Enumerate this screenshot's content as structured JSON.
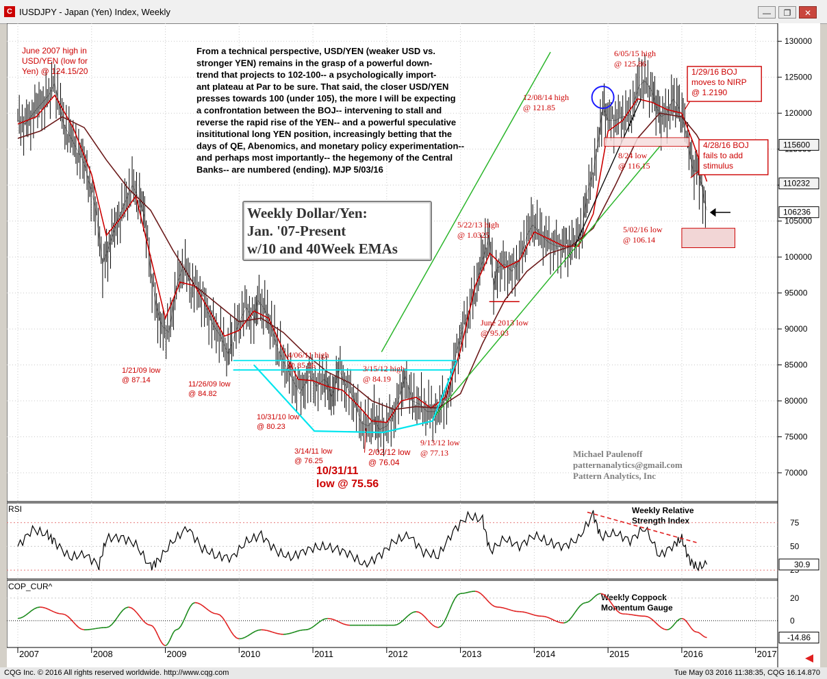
{
  "window": {
    "title": "IUSDJPY - Japan (Yen) Index, Weekly",
    "app_icon": "cqg-app-icon",
    "minimize_label": "—",
    "restore_label": "❐",
    "close_label": "✕"
  },
  "footer": {
    "copyright": "CQG Inc. © 2016 All rights reserved worldwide. http://www.cqg.com",
    "timestamp": "Tue May 03 2016 11:38:35, CQG 16.14.870"
  },
  "chart_data": {
    "type": "line",
    "title": "Weekly Dollar/Yen:",
    "title_lines": [
      "Weekly Dollar/Yen:",
      "Jan. '07-Present",
      "w/10 and 40Week EMAs"
    ],
    "x_axis": {
      "labels": [
        "2007",
        "2008",
        "2009",
        "2010",
        "2011",
        "2012",
        "2013",
        "2014",
        "2015",
        "2016",
        "2017"
      ],
      "range": [
        2007.0,
        2017.3
      ]
    },
    "y_axis": {
      "ticks": [
        130000,
        125000,
        120000,
        115000,
        110000,
        105000,
        100000,
        95000,
        90000,
        85000,
        80000,
        75000,
        70000
      ],
      "range": [
        66000,
        132500
      ],
      "price_boxes": [
        "115600",
        "110232",
        "106236"
      ]
    },
    "series": [
      {
        "name": "USDJPY",
        "color": "#000000",
        "x": [
          2007.0,
          2007.1,
          2007.25,
          2007.42,
          2007.5,
          2007.62,
          2007.75,
          2007.9,
          2008.05,
          2008.15,
          2008.22,
          2008.35,
          2008.45,
          2008.55,
          2008.65,
          2008.72,
          2008.8,
          2008.88,
          2008.95,
          2009.05,
          2009.15,
          2009.25,
          2009.35,
          2009.45,
          2009.55,
          2009.65,
          2009.75,
          2009.85,
          2009.9,
          2010.0,
          2010.1,
          2010.2,
          2010.25,
          2010.33,
          2010.42,
          2010.5,
          2010.6,
          2010.7,
          2010.82,
          2010.95,
          2011.05,
          2011.15,
          2011.2,
          2011.25,
          2011.3,
          2011.35,
          2011.45,
          2011.55,
          2011.65,
          2011.75,
          2011.83,
          2011.9,
          2012.0,
          2012.1,
          2012.2,
          2012.25,
          2012.35,
          2012.45,
          2012.55,
          2012.7,
          2012.85,
          2012.95,
          2013.05,
          2013.15,
          2013.3,
          2013.39,
          2013.45,
          2013.5,
          2013.6,
          2013.7,
          2013.8,
          2013.9,
          2013.98,
          2014.1,
          2014.2,
          2014.3,
          2014.4,
          2014.55,
          2014.65,
          2014.72,
          2014.8,
          2014.88,
          2014.93,
          2015.0,
          2015.1,
          2015.2,
          2015.3,
          2015.42,
          2015.5,
          2015.6,
          2015.65,
          2015.72,
          2015.8,
          2015.88,
          2015.95,
          2016.02,
          2016.08,
          2016.15,
          2016.22,
          2016.27,
          2016.3,
          2016.34
        ],
        "y": [
          119000,
          118500,
          120500,
          122500,
          124150,
          118500,
          116000,
          113000,
          107000,
          99000,
          101000,
          105000,
          107500,
          110000,
          108000,
          105500,
          98000,
          93000,
          90500,
          89500,
          96000,
          99000,
          96000,
          95500,
          93000,
          90500,
          89000,
          86500,
          88000,
          91000,
          93000,
          91000,
          94000,
          93000,
          91000,
          88000,
          85500,
          83500,
          81000,
          83500,
          82000,
          83000,
          82500,
          80500,
          82000,
          84500,
          82000,
          80500,
          77000,
          76500,
          77500,
          76000,
          76500,
          78000,
          81500,
          83500,
          80000,
          79500,
          78500,
          78500,
          81500,
          87000,
          90500,
          93500,
          99500,
          103000,
          96000,
          98500,
          99000,
          98000,
          99500,
          103000,
          104500,
          103000,
          102000,
          101500,
          101500,
          101800,
          104000,
          109000,
          112000,
          117000,
          121000,
          119000,
          119000,
          119500,
          119800,
          123800,
          124500,
          123000,
          121000,
          119500,
          120000,
          122000,
          121000,
          119000,
          116000,
          112000,
          112000,
          110000,
          108000,
          106500
        ],
        "cycle_note": "weekly bars"
      },
      {
        "name": "10 Week EMA",
        "color": "#cc0000",
        "x": [
          2007.0,
          2007.25,
          2007.5,
          2007.75,
          2008.0,
          2008.2,
          2008.4,
          2008.6,
          2008.8,
          2009.0,
          2009.2,
          2009.4,
          2009.6,
          2009.8,
          2010.0,
          2010.2,
          2010.4,
          2010.6,
          2010.8,
          2011.0,
          2011.2,
          2011.4,
          2011.6,
          2011.8,
          2012.0,
          2012.2,
          2012.4,
          2012.6,
          2012.8,
          2013.0,
          2013.2,
          2013.4,
          2013.6,
          2013.8,
          2014.0,
          2014.2,
          2014.4,
          2014.6,
          2014.8,
          2015.0,
          2015.2,
          2015.4,
          2015.6,
          2015.8,
          2016.0,
          2016.15,
          2016.34
        ],
        "y": [
          118500,
          119500,
          122500,
          118000,
          111500,
          103000,
          105500,
          108500,
          100000,
          91500,
          96500,
          96000,
          92500,
          89000,
          89800,
          92500,
          91500,
          87000,
          83000,
          82800,
          82000,
          81500,
          79500,
          77200,
          77000,
          80000,
          80500,
          79000,
          80500,
          87000,
          96000,
          100500,
          98500,
          99500,
          103500,
          102500,
          101500,
          101500,
          106000,
          117500,
          119000,
          122000,
          121500,
          120500,
          120000,
          116000,
          110500
        ]
      },
      {
        "name": "40 Week EMA",
        "color": "#6b1a1a",
        "x": [
          2007.0,
          2007.3,
          2007.6,
          2007.9,
          2008.2,
          2008.5,
          2008.8,
          2009.1,
          2009.4,
          2009.7,
          2010.0,
          2010.3,
          2010.6,
          2010.9,
          2011.2,
          2011.5,
          2011.8,
          2012.1,
          2012.4,
          2012.7,
          2013.0,
          2013.3,
          2013.6,
          2013.9,
          2014.2,
          2014.5,
          2014.8,
          2015.1,
          2015.4,
          2015.7,
          2016.0,
          2016.2,
          2016.34
        ],
        "y": [
          116500,
          117500,
          119500,
          118000,
          113500,
          109500,
          106500,
          101000,
          96000,
          93500,
          91000,
          91500,
          89500,
          86500,
          84000,
          82500,
          80000,
          78800,
          79200,
          79000,
          81000,
          88000,
          94000,
          98000,
          100500,
          101500,
          104000,
          110000,
          116500,
          120000,
          119500,
          117000,
          114500
        ]
      }
    ],
    "annotations": [
      {
        "lines": [
          "June 2007 high in",
          "USD/YEN (low for",
          "Yen) @ 124.15/20"
        ],
        "color": "#cc0000"
      },
      {
        "lines": [
          "1/21/09  low",
          "@ 87.14"
        ],
        "color": "#cc0000"
      },
      {
        "lines": [
          "11/26/09 low",
          "@ 84.82"
        ],
        "color": "#cc0000"
      },
      {
        "lines": [
          "10/31/10 low",
          "@ 80.23"
        ],
        "color": "#cc0000"
      },
      {
        "lines": [
          "4/06/11 high",
          "@ 85.56"
        ],
        "color": "#cc0000"
      },
      {
        "lines": [
          "3/14/11 low",
          "@ 76.25"
        ],
        "color": "#cc0000"
      },
      {
        "lines": [
          "2/02/12 low",
          "@ 76.04"
        ],
        "color": "#cc0000"
      },
      {
        "lines": [
          "10/31/11",
          "low @ 75.56"
        ],
        "color": "#cc0000"
      },
      {
        "lines": [
          "3/15/12 high",
          "@ 84.19"
        ],
        "color": "#cc0000"
      },
      {
        "lines": [
          "9/13/12 low",
          "@ 77.13"
        ],
        "color": "#cc0000"
      },
      {
        "lines": [
          "5/22/13 high",
          "@ 1.0325"
        ],
        "color": "#cc0000"
      },
      {
        "lines": [
          "June 2013 low",
          "@ 95.03"
        ],
        "color": "#cc0000"
      },
      {
        "lines": [
          "12/08/14 high",
          "@ 121.85"
        ],
        "color": "#cc0000"
      },
      {
        "lines": [
          "6/05/15 high",
          "@ 125.86"
        ],
        "color": "#cc0000"
      },
      {
        "lines": [
          "8/24 low",
          "@ 116.15"
        ],
        "color": "#cc0000"
      },
      {
        "lines": [
          "5/02/16 low",
          "@ 106.14"
        ],
        "color": "#cc0000"
      },
      {
        "lines": [
          "1/29/16 BOJ",
          "moves to NIRP",
          "@ 1.2190"
        ],
        "color": "#cc0000",
        "boxed": true
      },
      {
        "lines": [
          "4/28/16 BOJ",
          "fails to add",
          "stimulus"
        ],
        "color": "#cc0000",
        "boxed": true
      }
    ],
    "commentary": [
      "From a technical perspective, USD/YEN (weaker USD vs.",
      "stronger YEN) remains in the grasp of a powerful down-",
      "trend that projects to 102-100-- a psychologically import-",
      "ant plateau at Par to be sure. That said, the closer USD/YEN",
      "presses towards 100 (under 105), the more I will be expecting",
      "a confrontation between the BOJ-- intervening to stall and",
      "reverse the rapid rise of the YEN-- and a powerful speculative",
      "insititutional long YEN position, increasingly betting that the",
      "days of QE, Abenomics, and monetary policy experimentation--",
      "and perhaps most importantly-- the hegemony of the Central",
      "Banks-- are numbered (ending).  MJP  5/03/16"
    ],
    "signature": [
      "Michael Paulenoff",
      "patternanalytics@gmail.com",
      "Pattern Analytics, Inc"
    ],
    "rsi_panel": {
      "label": "RSI",
      "caption": [
        "Weekly Relative",
        "Strength Index"
      ],
      "ticks": [
        "75",
        "50",
        "25"
      ],
      "current": "30.9",
      "range": [
        20,
        90
      ],
      "x": [
        2007.0,
        2007.2,
        2007.4,
        2007.5,
        2007.7,
        2007.9,
        2008.1,
        2008.2,
        2008.4,
        2008.6,
        2008.8,
        2008.9,
        2009.1,
        2009.3,
        2009.5,
        2009.7,
        2009.9,
        2010.1,
        2010.3,
        2010.5,
        2010.7,
        2010.9,
        2011.1,
        2011.3,
        2011.5,
        2011.7,
        2011.9,
        2012.1,
        2012.3,
        2012.5,
        2012.7,
        2012.9,
        2013.1,
        2013.3,
        2013.4,
        2013.6,
        2013.8,
        2014.0,
        2014.2,
        2014.4,
        2014.6,
        2014.8,
        2014.9,
        2015.1,
        2015.3,
        2015.5,
        2015.7,
        2015.9,
        2016.0,
        2016.1,
        2016.2,
        2016.34
      ],
      "y": [
        50,
        68,
        62,
        55,
        38,
        42,
        30,
        58,
        60,
        52,
        28,
        35,
        55,
        70,
        48,
        40,
        38,
        55,
        62,
        45,
        38,
        46,
        50,
        48,
        42,
        30,
        40,
        55,
        62,
        44,
        40,
        66,
        82,
        78,
        45,
        58,
        50,
        62,
        54,
        50,
        58,
        84,
        60,
        64,
        56,
        70,
        40,
        52,
        58,
        36,
        28,
        31
      ]
    },
    "coppock_panel": {
      "label": "COP_CUR^",
      "caption": [
        "Weekly Coppock",
        "Momentum Gauge"
      ],
      "ticks": [
        "20",
        "0"
      ],
      "current": "-14.86",
      "range": [
        -20,
        32
      ],
      "x": [
        2007.0,
        2007.3,
        2007.6,
        2007.9,
        2008.2,
        2008.5,
        2008.8,
        2009.0,
        2009.15,
        2009.4,
        2009.7,
        2010.0,
        2010.3,
        2010.6,
        2010.9,
        2011.2,
        2011.5,
        2011.8,
        2012.1,
        2012.4,
        2012.7,
        2013.0,
        2013.2,
        2013.5,
        2013.8,
        2014.1,
        2014.4,
        2014.7,
        2014.9,
        2015.2,
        2015.5,
        2015.8,
        2016.0,
        2016.2,
        2016.34
      ],
      "y": [
        2,
        12,
        6,
        -8,
        -6,
        12,
        -4,
        -22,
        -8,
        16,
        6,
        -16,
        -8,
        -12,
        -8,
        2,
        -4,
        -4,
        -4,
        8,
        -6,
        24,
        26,
        12,
        8,
        4,
        -2,
        16,
        24,
        6,
        4,
        -8,
        2,
        -10,
        -14.86
      ]
    }
  }
}
